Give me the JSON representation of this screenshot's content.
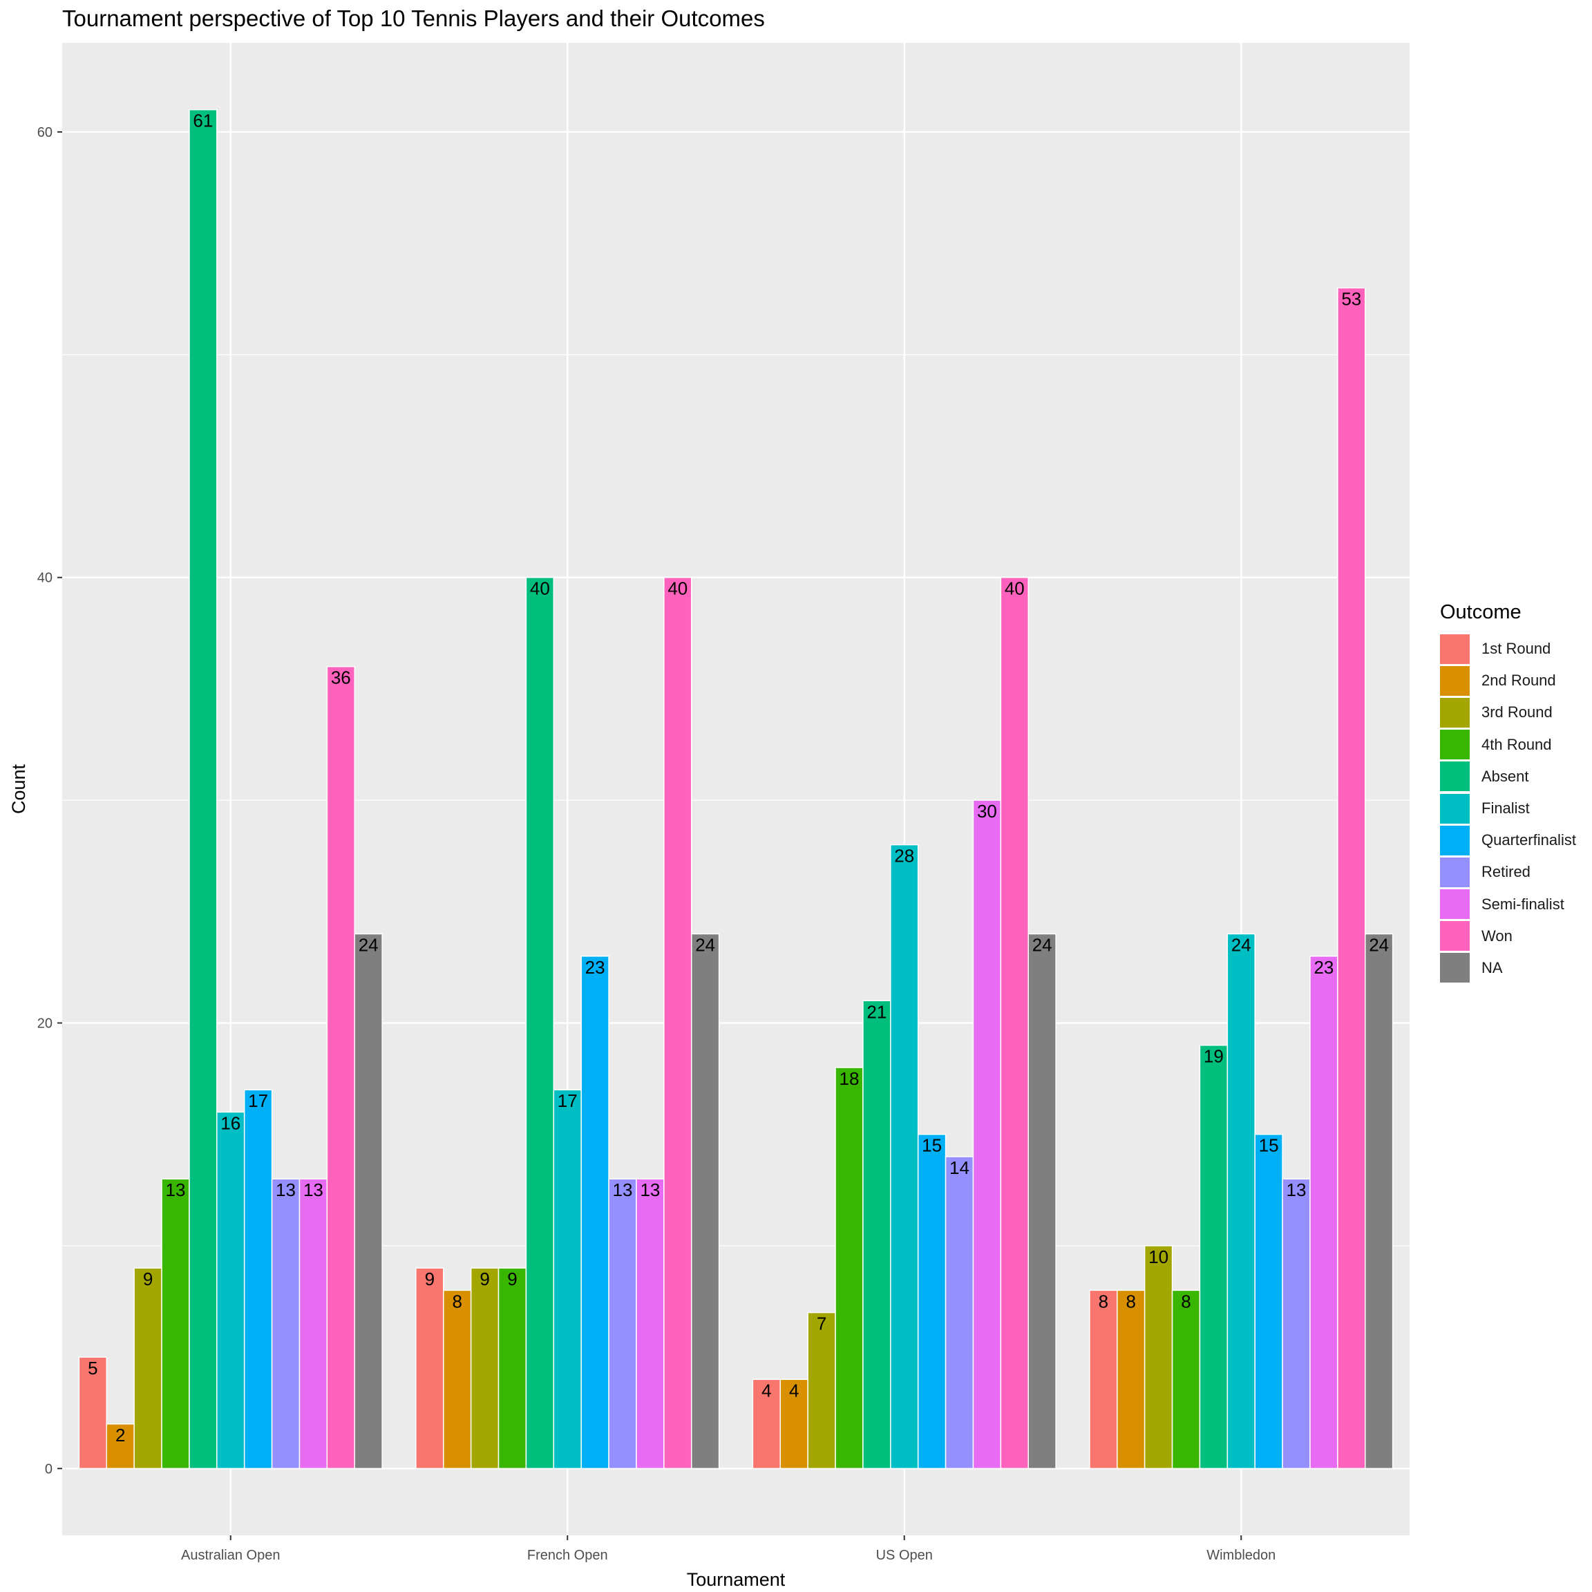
{
  "chart_data": {
    "type": "bar",
    "title": "Tournament perspective of Top 10 Tennis Players and their Outcomes",
    "xlabel": "Tournament",
    "ylabel": "Count",
    "categories": [
      "Australian Open",
      "French Open",
      "US Open",
      "Wimbledon"
    ],
    "ylim": [
      -3,
      64
    ],
    "yticks": [
      0,
      20,
      40,
      60
    ],
    "grid": true,
    "legend_title": "Outcome",
    "legend_position": "right",
    "series": [
      {
        "name": "1st Round",
        "color": "#F8766D",
        "values": [
          5,
          9,
          4,
          8
        ]
      },
      {
        "name": "2nd Round",
        "color": "#D89000",
        "values": [
          2,
          8,
          4,
          8
        ]
      },
      {
        "name": "3rd Round",
        "color": "#A3A500",
        "values": [
          9,
          9,
          7,
          10
        ]
      },
      {
        "name": "4th Round",
        "color": "#39B600",
        "values": [
          13,
          9,
          18,
          8
        ]
      },
      {
        "name": "Absent",
        "color": "#00BF7D",
        "values": [
          61,
          40,
          21,
          19
        ]
      },
      {
        "name": "Finalist",
        "color": "#00BFC4",
        "values": [
          16,
          17,
          28,
          24
        ]
      },
      {
        "name": "Quarterfinalist",
        "color": "#00B0F6",
        "values": [
          17,
          23,
          15,
          15
        ]
      },
      {
        "name": "Retired",
        "color": "#9590FF",
        "values": [
          13,
          13,
          14,
          13
        ]
      },
      {
        "name": "Semi-finalist",
        "color": "#E76BF3",
        "values": [
          13,
          13,
          30,
          23
        ]
      },
      {
        "name": "Won",
        "color": "#FF62BC",
        "values": [
          36,
          40,
          40,
          53
        ]
      },
      {
        "name": "NA",
        "color": "#7F7F7F",
        "values": [
          24,
          24,
          24,
          24
        ]
      }
    ]
  }
}
